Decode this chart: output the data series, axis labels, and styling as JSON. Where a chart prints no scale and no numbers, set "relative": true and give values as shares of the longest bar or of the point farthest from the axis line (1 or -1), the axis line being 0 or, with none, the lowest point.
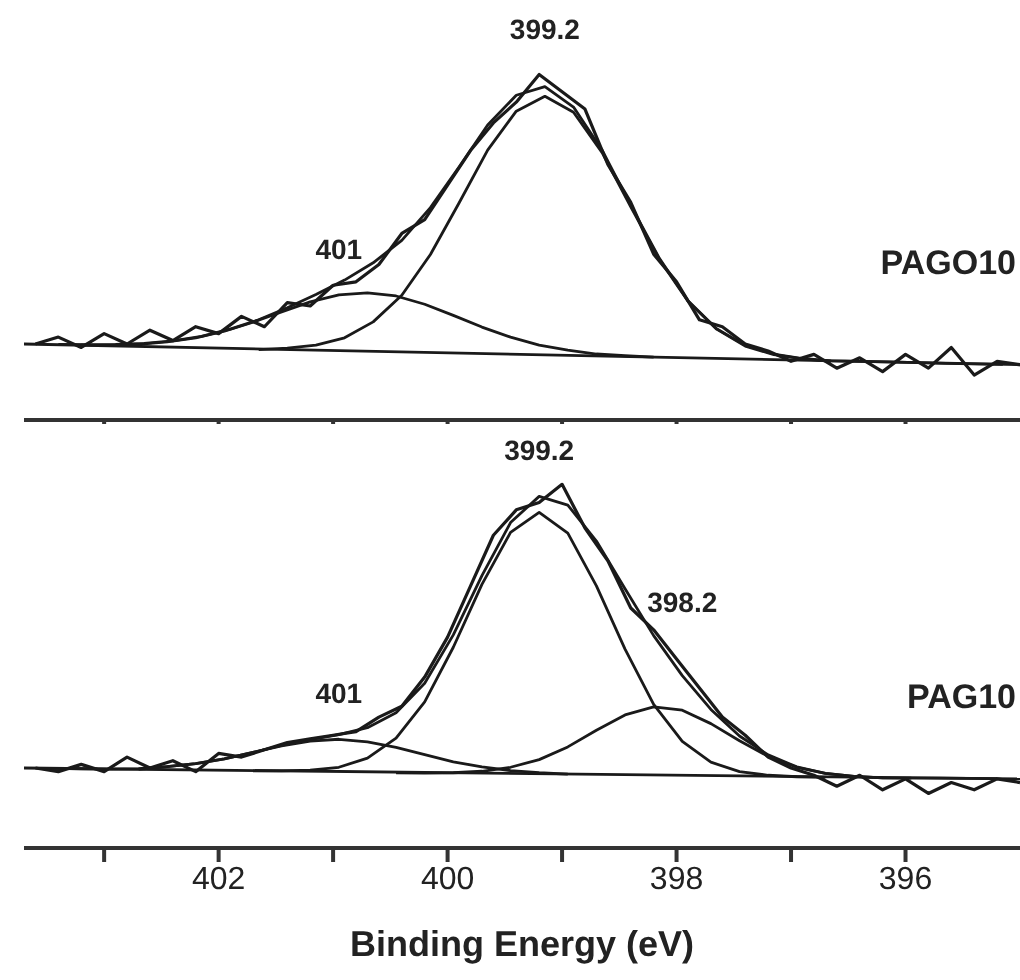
{
  "chart_data": [
    {
      "type": "line",
      "title": "PAGO10",
      "relative": true,
      "xlim": [
        403.7,
        395
      ],
      "xticks": [
        {
          "value": 403,
          "label": null
        },
        402,
        {
          "value": 401,
          "label": null
        },
        400,
        {
          "value": 399,
          "label": null
        },
        398,
        {
          "value": 397,
          "label": null
        },
        396
      ],
      "tick_labels": false,
      "marker": "none",
      "line_style": "solid",
      "annotations": [
        {
          "text": "401",
          "x": 400.95,
          "y": 0.362
        },
        {
          "text": "399.2",
          "x": 399.15,
          "y": 1.0
        }
      ],
      "series": [
        {
          "color": "#1a1a1a",
          "x": [
            403.6,
            403.4,
            403.2,
            403.0,
            402.8,
            402.6,
            402.4,
            402.2,
            402.0,
            401.8,
            401.6,
            401.4,
            401.2,
            401.0,
            400.8,
            400.6,
            400.4,
            400.2,
            400.0,
            399.8,
            399.6,
            399.4,
            399.2,
            399.0,
            398.8,
            398.6,
            398.4,
            398.2,
            398.0,
            397.8,
            397.6,
            397.4,
            397.2,
            397.0,
            396.8,
            396.6,
            396.4,
            396.2,
            396.0,
            395.8,
            395.6,
            395.4,
            395.2,
            395.0
          ],
          "values": [
            0.22,
            0.24,
            0.21,
            0.25,
            0.22,
            0.26,
            0.23,
            0.27,
            0.25,
            0.3,
            0.27,
            0.34,
            0.33,
            0.39,
            0.4,
            0.45,
            0.54,
            0.58,
            0.68,
            0.78,
            0.86,
            0.92,
            1.0,
            0.95,
            0.9,
            0.74,
            0.63,
            0.48,
            0.4,
            0.29,
            0.27,
            0.22,
            0.2,
            0.17,
            0.19,
            0.15,
            0.18,
            0.14,
            0.19,
            0.15,
            0.21,
            0.13,
            0.17,
            0.16
          ]
        },
        {
          "color": "#1a1a1a",
          "x": [
            403.4,
            403.15,
            402.9,
            402.65,
            402.4,
            402.15,
            401.9,
            401.65,
            401.4,
            401.15,
            400.9,
            400.65,
            400.4,
            400.15,
            399.9,
            399.65,
            399.4,
            399.15,
            398.9,
            398.65,
            398.4,
            398.15,
            397.9,
            397.65,
            397.4,
            397.15,
            396.9,
            396.65,
            396.15,
            395.65,
            395.15
          ],
          "values": [
            0.219,
            0.218,
            0.219,
            0.222,
            0.229,
            0.242,
            0.263,
            0.29,
            0.325,
            0.363,
            0.405,
            0.455,
            0.52,
            0.615,
            0.732,
            0.854,
            0.94,
            0.965,
            0.906,
            0.781,
            0.621,
            0.468,
            0.345,
            0.264,
            0.216,
            0.191,
            0.178,
            0.171,
            0.168,
            0.164,
            0.161
          ]
        },
        {
          "color": "#1a1a1a",
          "x": [
            403.2,
            402.95,
            402.7,
            402.45,
            402.2,
            401.95,
            401.7,
            401.45,
            401.2,
            400.95,
            400.7,
            400.45,
            400.2,
            399.95,
            399.7,
            399.45,
            399.2,
            398.95,
            398.7,
            398.45,
            398.2
          ],
          "values": [
            0.217,
            0.217,
            0.219,
            0.226,
            0.238,
            0.257,
            0.283,
            0.313,
            0.342,
            0.362,
            0.368,
            0.359,
            0.335,
            0.303,
            0.269,
            0.24,
            0.217,
            0.202,
            0.191,
            0.186,
            0.182
          ]
        },
        {
          "color": "#1a1a1a",
          "x": [
            401.65,
            401.4,
            401.15,
            400.9,
            400.65,
            400.4,
            400.15,
            399.9,
            399.65,
            399.4,
            399.15,
            398.9,
            398.65,
            398.4,
            398.15,
            397.9,
            397.65,
            397.4,
            397.15,
            396.9,
            396.65
          ],
          "values": [
            0.204,
            0.208,
            0.217,
            0.238,
            0.284,
            0.361,
            0.479,
            0.628,
            0.781,
            0.894,
            0.937,
            0.891,
            0.774,
            0.617,
            0.465,
            0.344,
            0.263,
            0.214,
            0.189,
            0.177,
            0.17
          ]
        },
        {
          "color": "#1a1a1a",
          "x": [
            403.7,
            395
          ],
          "values": [
            0.22,
            0.16
          ]
        }
      ]
    },
    {
      "type": "line",
      "title": "PAG10",
      "xlabel": "Binding Energy (eV)",
      "relative": true,
      "xlim": [
        403.7,
        395
      ],
      "xticks": [
        {
          "value": 403,
          "label": null
        },
        402,
        {
          "value": 401,
          "label": null
        },
        400,
        {
          "value": 399,
          "label": null
        },
        398,
        {
          "value": 397,
          "label": null
        },
        396
      ],
      "tick_labels": "x",
      "marker": "none",
      "line_style": "solid",
      "annotations": [
        {
          "text": "401",
          "x": 400.95,
          "y": 0.3
        },
        {
          "text": "399.2",
          "x": 399.2,
          "y": 0.967
        },
        {
          "text": "398.2",
          "x": 397.95,
          "y": 0.55
        }
      ],
      "series": [
        {
          "color": "#1a1a1a",
          "x": [
            403.6,
            403.4,
            403.2,
            403.0,
            402.8,
            402.6,
            402.4,
            402.2,
            402.0,
            401.8,
            401.6,
            401.4,
            401.2,
            401.0,
            400.8,
            400.6,
            400.4,
            400.2,
            400.0,
            399.8,
            399.6,
            399.4,
            399.2,
            399.0,
            398.8,
            398.6,
            398.4,
            398.2,
            398.0,
            397.8,
            397.6,
            397.4,
            397.2,
            397.0,
            396.8,
            396.6,
            396.4,
            396.2,
            396.0,
            395.8,
            395.6,
            395.4,
            395.2,
            395.0
          ],
          "values": [
            0.22,
            0.21,
            0.23,
            0.21,
            0.25,
            0.22,
            0.24,
            0.21,
            0.26,
            0.25,
            0.27,
            0.29,
            0.3,
            0.31,
            0.32,
            0.36,
            0.39,
            0.47,
            0.58,
            0.72,
            0.86,
            0.93,
            0.95,
            1.0,
            0.88,
            0.79,
            0.66,
            0.6,
            0.52,
            0.44,
            0.36,
            0.31,
            0.25,
            0.22,
            0.2,
            0.17,
            0.2,
            0.16,
            0.19,
            0.15,
            0.18,
            0.16,
            0.19,
            0.18
          ]
        },
        {
          "color": "#1a1a1a",
          "x": [
            403.45,
            403.2,
            402.95,
            402.7,
            402.45,
            402.2,
            401.95,
            401.7,
            401.45,
            401.2,
            400.95,
            400.7,
            400.45,
            400.2,
            399.95,
            399.7,
            399.45,
            399.2,
            398.95,
            398.7,
            398.45,
            398.2,
            397.95,
            397.7,
            397.45,
            397.2,
            396.95,
            396.7,
            396.45,
            396.2,
            395.7,
            395.2
          ],
          "values": [
            0.219,
            0.218,
            0.217,
            0.218,
            0.224,
            0.232,
            0.245,
            0.263,
            0.282,
            0.298,
            0.312,
            0.331,
            0.372,
            0.453,
            0.586,
            0.749,
            0.895,
            0.967,
            0.943,
            0.844,
            0.713,
            0.584,
            0.474,
            0.381,
            0.308,
            0.256,
            0.223,
            0.205,
            0.197,
            0.193,
            0.192,
            0.191
          ]
        },
        {
          "color": "#1a1a1a",
          "x": [
            402.7,
            402.45,
            402.2,
            401.95,
            401.7,
            401.45,
            401.2,
            400.95,
            400.7,
            400.45,
            400.2,
            399.95,
            399.7,
            399.45,
            399.2,
            398.95
          ],
          "values": [
            0.216,
            0.224,
            0.232,
            0.245,
            0.263,
            0.281,
            0.294,
            0.299,
            0.292,
            0.277,
            0.257,
            0.237,
            0.223,
            0.213,
            0.207,
            0.203
          ]
        },
        {
          "color": "#1a1a1a",
          "x": [
            401.7,
            401.45,
            401.2,
            400.95,
            400.7,
            400.45,
            400.2,
            399.95,
            399.7,
            399.45,
            399.2,
            398.95,
            398.7,
            398.45,
            398.2,
            397.95,
            397.7,
            397.45,
            397.2,
            396.95,
            396.7
          ],
          "values": [
            0.212,
            0.212,
            0.214,
            0.222,
            0.247,
            0.302,
            0.402,
            0.552,
            0.725,
            0.868,
            0.923,
            0.866,
            0.721,
            0.547,
            0.395,
            0.293,
            0.236,
            0.21,
            0.2,
            0.196,
            0.194
          ]
        },
        {
          "color": "#1a1a1a",
          "x": [
            400.45,
            400.2,
            399.95,
            399.7,
            399.45,
            399.2,
            398.95,
            398.7,
            398.45,
            398.2,
            397.95,
            397.7,
            397.45,
            397.2,
            396.95,
            396.7,
            396.45,
            396.2,
            395.95
          ],
          "values": [
            0.207,
            0.206,
            0.207,
            0.211,
            0.222,
            0.243,
            0.278,
            0.324,
            0.366,
            0.388,
            0.379,
            0.342,
            0.295,
            0.252,
            0.222,
            0.205,
            0.197,
            0.193,
            0.192
          ]
        },
        {
          "color": "#1a1a1a",
          "x": [
            403.7,
            395
          ],
          "values": [
            0.22,
            0.19
          ]
        }
      ]
    }
  ]
}
